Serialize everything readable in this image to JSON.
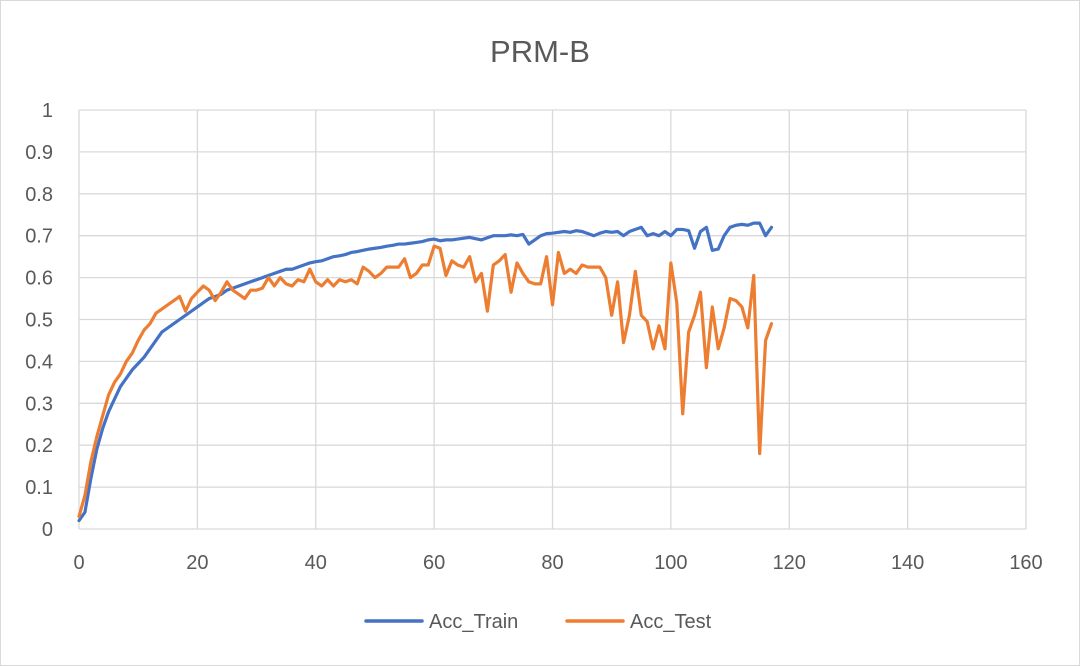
{
  "chart_data": {
    "type": "line",
    "title": "PRM-B",
    "xlabel": "",
    "ylabel": "",
    "xlim": [
      0,
      160
    ],
    "ylim": [
      0,
      1
    ],
    "xticks": [
      0,
      20,
      40,
      60,
      80,
      100,
      120,
      140,
      160
    ],
    "yticks": [
      0,
      0.1,
      0.2,
      0.3,
      0.4,
      0.5,
      0.6,
      0.7,
      0.8,
      0.9,
      1
    ],
    "xtick_labels": [
      "0",
      "20",
      "40",
      "60",
      "80",
      "100",
      "120",
      "140",
      "160"
    ],
    "ytick_labels": [
      "0",
      "0.1",
      "0.2",
      "0.3",
      "0.4",
      "0.5",
      "0.6",
      "0.7",
      "0.8",
      "0.9",
      "1"
    ],
    "grid": true,
    "legend_position": "bottom",
    "x": [
      0,
      1,
      2,
      3,
      4,
      5,
      6,
      7,
      8,
      9,
      10,
      11,
      12,
      13,
      14,
      15,
      16,
      17,
      18,
      19,
      20,
      21,
      22,
      23,
      24,
      25,
      26,
      27,
      28,
      29,
      30,
      31,
      32,
      33,
      34,
      35,
      36,
      37,
      38,
      39,
      40,
      41,
      42,
      43,
      44,
      45,
      46,
      47,
      48,
      49,
      50,
      51,
      52,
      53,
      54,
      55,
      56,
      57,
      58,
      59,
      60,
      61,
      62,
      63,
      64,
      65,
      66,
      67,
      68,
      69,
      70,
      71,
      72,
      73,
      74,
      75,
      76,
      77,
      78,
      79,
      80,
      81,
      82,
      83,
      84,
      85,
      86,
      87,
      88,
      89,
      90,
      91,
      92,
      93,
      94,
      95,
      96,
      97,
      98,
      99,
      100,
      101,
      102,
      103,
      104,
      105,
      106,
      107,
      108,
      109,
      110,
      111,
      112,
      113,
      114,
      115,
      116,
      117
    ],
    "series": [
      {
        "name": "Acc_Train",
        "color": "#4472c4",
        "values": [
          0.02,
          0.04,
          0.12,
          0.19,
          0.24,
          0.28,
          0.31,
          0.34,
          0.36,
          0.38,
          0.395,
          0.41,
          0.43,
          0.45,
          0.47,
          0.48,
          0.49,
          0.5,
          0.51,
          0.52,
          0.53,
          0.54,
          0.55,
          0.555,
          0.56,
          0.57,
          0.575,
          0.58,
          0.585,
          0.59,
          0.595,
          0.6,
          0.605,
          0.61,
          0.615,
          0.62,
          0.62,
          0.625,
          0.63,
          0.635,
          0.638,
          0.64,
          0.645,
          0.65,
          0.652,
          0.655,
          0.66,
          0.662,
          0.665,
          0.668,
          0.67,
          0.672,
          0.675,
          0.677,
          0.68,
          0.68,
          0.682,
          0.684,
          0.686,
          0.69,
          0.692,
          0.688,
          0.69,
          0.69,
          0.692,
          0.694,
          0.696,
          0.693,
          0.69,
          0.695,
          0.7,
          0.7,
          0.7,
          0.702,
          0.7,
          0.703,
          0.68,
          0.69,
          0.7,
          0.705,
          0.706,
          0.708,
          0.71,
          0.708,
          0.712,
          0.71,
          0.705,
          0.7,
          0.706,
          0.71,
          0.708,
          0.71,
          0.7,
          0.71,
          0.715,
          0.72,
          0.7,
          0.705,
          0.7,
          0.71,
          0.7,
          0.715,
          0.715,
          0.712,
          0.67,
          0.71,
          0.72,
          0.665,
          0.668,
          0.7,
          0.72,
          0.725,
          0.727,
          0.725,
          0.73,
          0.73,
          0.7,
          0.72
        ]
      },
      {
        "name": "Acc_Test",
        "color": "#ed7d31",
        "values": [
          0.03,
          0.08,
          0.16,
          0.22,
          0.27,
          0.32,
          0.35,
          0.37,
          0.4,
          0.42,
          0.45,
          0.475,
          0.49,
          0.515,
          0.525,
          0.535,
          0.545,
          0.555,
          0.52,
          0.55,
          0.565,
          0.58,
          0.57,
          0.545,
          0.565,
          0.59,
          0.57,
          0.56,
          0.55,
          0.57,
          0.57,
          0.575,
          0.6,
          0.58,
          0.6,
          0.585,
          0.58,
          0.595,
          0.59,
          0.62,
          0.59,
          0.58,
          0.595,
          0.58,
          0.595,
          0.59,
          0.595,
          0.585,
          0.625,
          0.615,
          0.6,
          0.61,
          0.625,
          0.625,
          0.625,
          0.645,
          0.6,
          0.61,
          0.63,
          0.63,
          0.675,
          0.67,
          0.605,
          0.64,
          0.63,
          0.625,
          0.65,
          0.59,
          0.61,
          0.52,
          0.63,
          0.64,
          0.655,
          0.565,
          0.635,
          0.61,
          0.59,
          0.585,
          0.585,
          0.65,
          0.535,
          0.66,
          0.61,
          0.62,
          0.61,
          0.63,
          0.625,
          0.625,
          0.625,
          0.6,
          0.51,
          0.59,
          0.445,
          0.51,
          0.615,
          0.51,
          0.495,
          0.43,
          0.485,
          0.43,
          0.635,
          0.54,
          0.275,
          0.47,
          0.51,
          0.565,
          0.385,
          0.53,
          0.43,
          0.48,
          0.55,
          0.545,
          0.53,
          0.48,
          0.605,
          0.18,
          0.45,
          0.49
        ]
      }
    ]
  }
}
